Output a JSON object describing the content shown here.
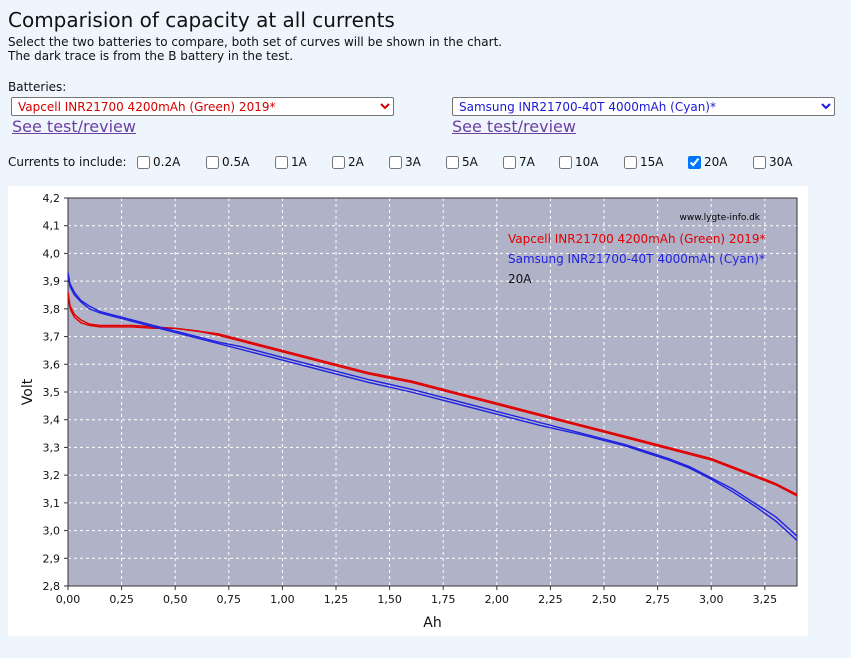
{
  "page": {
    "title": "Comparision of capacity at all currents",
    "desc_line1": "Select the two batteries to compare, both set of curves will be shown in the chart.",
    "desc_line2": "The dark trace is from the B battery in the test.",
    "batteries_label": "Batteries:",
    "battery_a": "Vapcell INR21700 4200mAh (Green) 2019*",
    "battery_b": "Samsung INR21700-40T 4000mAh (Cyan)*",
    "see_test_a": "See test/review",
    "see_test_b": "See test/review",
    "currents_label": "Currents to include:",
    "currents": [
      {
        "label": "0.2A",
        "checked": false
      },
      {
        "label": "0.5A",
        "checked": false
      },
      {
        "label": "1A",
        "checked": false
      },
      {
        "label": "2A",
        "checked": false
      },
      {
        "label": "3A",
        "checked": false
      },
      {
        "label": "5A",
        "checked": false
      },
      {
        "label": "7A",
        "checked": false
      },
      {
        "label": "10A",
        "checked": false
      },
      {
        "label": "15A",
        "checked": false
      },
      {
        "label": "20A",
        "checked": true
      },
      {
        "label": "30A",
        "checked": false
      }
    ]
  },
  "colors": {
    "plot_bg": "#b0b3c8",
    "grid": "#ffffff",
    "series_a": "#e00000",
    "series_b": "#2020e0",
    "text": "#111111"
  },
  "chart_data": {
    "type": "line",
    "watermark": "www.lygte-info.dk",
    "xlabel": "Ah",
    "ylabel": "Volt",
    "xlim": [
      0,
      3.4
    ],
    "ylim": [
      2.8,
      4.2
    ],
    "x_ticks": [
      "0,00",
      "0,25",
      "0,50",
      "0,75",
      "1,00",
      "1,25",
      "1,50",
      "1,75",
      "2,00",
      "2,25",
      "2,50",
      "2,75",
      "3,00",
      "3,25"
    ],
    "y_ticks": [
      "2,8",
      "2,9",
      "3,0",
      "3,1",
      "3,2",
      "3,3",
      "3,4",
      "3,5",
      "3,6",
      "3,7",
      "3,8",
      "3,9",
      "4,0",
      "4,1",
      "4,2"
    ],
    "legend": [
      {
        "name": "Vapcell INR21700 4200mAh (Green) 2019*",
        "color": "#e00000"
      },
      {
        "name": "Samsung INR21700-40T 4000mAh (Cyan)*",
        "color": "#2020e0"
      },
      {
        "name": "20A",
        "color": "#111111"
      }
    ],
    "series": [
      {
        "name": "Vapcell INR21700 4200mAh (Green) 2019*",
        "color": "#e00000",
        "traces": [
          {
            "x": [
              0,
              0.01,
              0.03,
              0.06,
              0.1,
              0.15,
              0.2,
              0.3,
              0.4,
              0.5,
              0.6,
              0.7,
              0.8,
              0.9,
              1.0,
              1.2,
              1.4,
              1.6,
              1.8,
              2.0,
              2.2,
              2.4,
              2.6,
              2.8,
              3.0,
              3.1,
              3.2,
              3.3,
              3.4
            ],
            "y": [
              3.85,
              3.8,
              3.77,
              3.75,
              3.74,
              3.735,
              3.735,
              3.735,
              3.73,
              3.73,
              3.72,
              3.71,
              3.69,
              3.67,
              3.65,
              3.61,
              3.57,
              3.54,
              3.5,
              3.46,
              3.42,
              3.38,
              3.34,
              3.3,
              3.26,
              3.23,
              3.2,
              3.17,
              3.13
            ]
          },
          {
            "x": [
              0,
              0.01,
              0.03,
              0.06,
              0.1,
              0.15,
              0.2,
              0.3,
              0.4,
              0.5,
              0.6,
              0.7,
              0.8,
              0.9,
              1.0,
              1.2,
              1.4,
              1.6,
              1.8,
              2.0,
              2.2,
              2.4,
              2.6,
              2.8,
              3.0,
              3.1,
              3.2,
              3.3,
              3.4
            ],
            "y": [
              3.86,
              3.81,
              3.78,
              3.76,
              3.745,
              3.74,
              3.74,
              3.74,
              3.735,
              3.73,
              3.72,
              3.705,
              3.685,
              3.665,
              3.645,
              3.605,
              3.565,
              3.535,
              3.495,
              3.455,
              3.415,
              3.375,
              3.335,
              3.295,
              3.255,
              3.225,
              3.195,
              3.165,
              3.125
            ]
          }
        ]
      },
      {
        "name": "Samsung INR21700-40T 4000mAh (Cyan)*",
        "color": "#2020e0",
        "traces": [
          {
            "x": [
              0,
              0.01,
              0.03,
              0.06,
              0.1,
              0.15,
              0.2,
              0.3,
              0.4,
              0.5,
              0.6,
              0.7,
              0.8,
              0.9,
              1.0,
              1.2,
              1.4,
              1.6,
              1.8,
              2.0,
              2.2,
              2.4,
              2.6,
              2.8,
              2.9,
              3.0,
              3.1,
              3.2,
              3.3,
              3.4
            ],
            "y": [
              3.93,
              3.89,
              3.86,
              3.83,
              3.81,
              3.79,
              3.78,
              3.76,
              3.74,
              3.72,
              3.7,
              3.68,
              3.665,
              3.645,
              3.625,
              3.585,
              3.545,
              3.51,
              3.47,
              3.43,
              3.39,
              3.35,
              3.31,
              3.26,
              3.23,
              3.19,
              3.15,
              3.1,
              3.05,
              2.98
            ]
          },
          {
            "x": [
              0,
              0.01,
              0.03,
              0.06,
              0.1,
              0.15,
              0.2,
              0.3,
              0.4,
              0.5,
              0.6,
              0.7,
              0.8,
              0.9,
              1.0,
              1.2,
              1.4,
              1.6,
              1.8,
              2.0,
              2.2,
              2.4,
              2.6,
              2.8,
              2.9,
              3.0,
              3.1,
              3.2,
              3.3,
              3.4
            ],
            "y": [
              3.92,
              3.88,
              3.85,
              3.825,
              3.8,
              3.785,
              3.775,
              3.755,
              3.735,
              3.715,
              3.695,
              3.675,
              3.655,
              3.635,
              3.615,
              3.575,
              3.535,
              3.5,
              3.46,
              3.42,
              3.38,
              3.345,
              3.305,
              3.255,
              3.225,
              3.185,
              3.14,
              3.09,
              3.035,
              2.965
            ]
          }
        ]
      }
    ]
  }
}
